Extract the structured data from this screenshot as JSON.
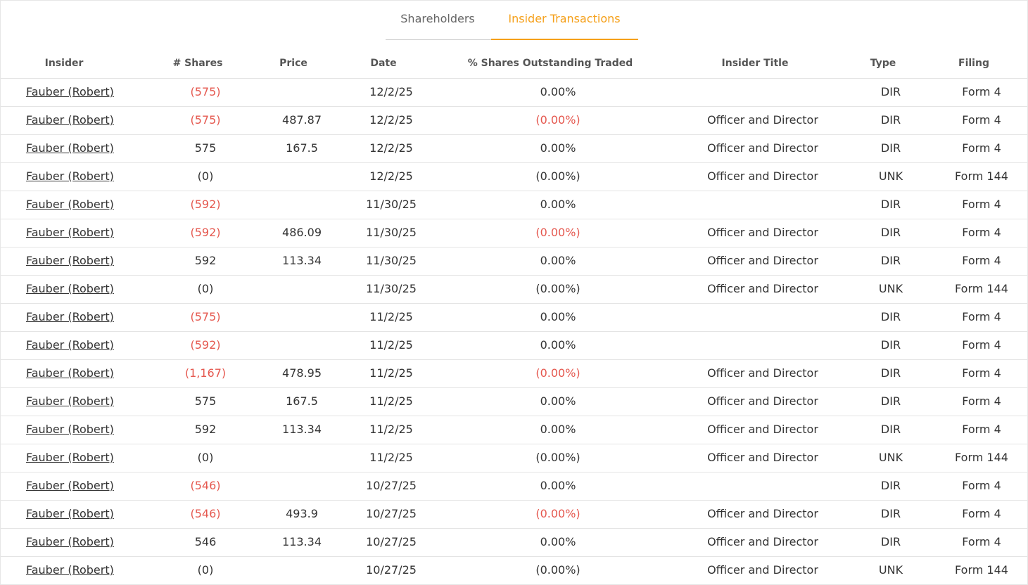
{
  "tabs": [
    "Shareholders",
    "Insider Transactions"
  ],
  "active_tab": 1,
  "colors": {
    "accent": "#f5a01a",
    "negative": "#e5584f",
    "text": "#333333"
  },
  "table": {
    "headers": [
      "Insider",
      "# Shares",
      "Price",
      "Date",
      "% Shares Outstanding Traded",
      "Insider Title",
      "Type",
      "Filing"
    ],
    "rows": [
      {
        "cells": [
          "Fauber (Robert)",
          "(575)",
          null,
          "12/2/25",
          "0.00%",
          null,
          "DIR",
          "Form 4"
        ],
        "red": [
          1
        ]
      },
      {
        "cells": [
          "Fauber (Robert)",
          "(575)",
          "487.87",
          "12/2/25",
          "(0.00%)",
          "Officer and Director",
          "DIR",
          "Form 4"
        ],
        "red": [
          1,
          4
        ]
      },
      {
        "cells": [
          "Fauber (Robert)",
          "575",
          "167.5",
          "12/2/25",
          "0.00%",
          "Officer and Director",
          "DIR",
          "Form 4"
        ],
        "red": []
      },
      {
        "cells": [
          "Fauber (Robert)",
          "(0)",
          null,
          "12/2/25",
          "(0.00%)",
          "Officer and Director",
          "UNK",
          "Form 144"
        ],
        "red": []
      },
      {
        "cells": [
          "Fauber (Robert)",
          "(592)",
          null,
          "11/30/25",
          "0.00%",
          null,
          "DIR",
          "Form 4"
        ],
        "red": [
          1
        ]
      },
      {
        "cells": [
          "Fauber (Robert)",
          "(592)",
          "486.09",
          "11/30/25",
          "(0.00%)",
          "Officer and Director",
          "DIR",
          "Form 4"
        ],
        "red": [
          1,
          4
        ]
      },
      {
        "cells": [
          "Fauber (Robert)",
          "592",
          "113.34",
          "11/30/25",
          "0.00%",
          "Officer and Director",
          "DIR",
          "Form 4"
        ],
        "red": []
      },
      {
        "cells": [
          "Fauber (Robert)",
          "(0)",
          null,
          "11/30/25",
          "(0.00%)",
          "Officer and Director",
          "UNK",
          "Form 144"
        ],
        "red": []
      },
      {
        "cells": [
          "Fauber (Robert)",
          "(575)",
          null,
          "11/2/25",
          "0.00%",
          null,
          "DIR",
          "Form 4"
        ],
        "red": [
          1
        ]
      },
      {
        "cells": [
          "Fauber (Robert)",
          "(592)",
          null,
          "11/2/25",
          "0.00%",
          null,
          "DIR",
          "Form 4"
        ],
        "red": [
          1
        ]
      },
      {
        "cells": [
          "Fauber (Robert)",
          "(1,167)",
          "478.95",
          "11/2/25",
          "(0.00%)",
          "Officer and Director",
          "DIR",
          "Form 4"
        ],
        "red": [
          1,
          4
        ]
      },
      {
        "cells": [
          "Fauber (Robert)",
          "575",
          "167.5",
          "11/2/25",
          "0.00%",
          "Officer and Director",
          "DIR",
          "Form 4"
        ],
        "red": []
      },
      {
        "cells": [
          "Fauber (Robert)",
          "592",
          "113.34",
          "11/2/25",
          "0.00%",
          "Officer and Director",
          "DIR",
          "Form 4"
        ],
        "red": []
      },
      {
        "cells": [
          "Fauber (Robert)",
          "(0)",
          null,
          "11/2/25",
          "(0.00%)",
          "Officer and Director",
          "UNK",
          "Form 144"
        ],
        "red": []
      },
      {
        "cells": [
          "Fauber (Robert)",
          "(546)",
          null,
          "10/27/25",
          "0.00%",
          null,
          "DIR",
          "Form 4"
        ],
        "red": [
          1
        ]
      },
      {
        "cells": [
          "Fauber (Robert)",
          "(546)",
          "493.9",
          "10/27/25",
          "(0.00%)",
          "Officer and Director",
          "DIR",
          "Form 4"
        ],
        "red": [
          1,
          4
        ]
      },
      {
        "cells": [
          "Fauber (Robert)",
          "546",
          "113.34",
          "10/27/25",
          "0.00%",
          "Officer and Director",
          "DIR",
          "Form 4"
        ],
        "red": []
      },
      {
        "cells": [
          "Fauber (Robert)",
          "(0)",
          null,
          "10/27/25",
          "(0.00%)",
          "Officer and Director",
          "UNK",
          "Form 144"
        ],
        "red": []
      }
    ]
  }
}
